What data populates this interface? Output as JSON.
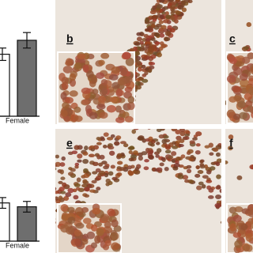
{
  "chart_data": [
    {
      "type": "bar",
      "categories": [
        "Female"
      ],
      "ylim": [
        0,
        150
      ],
      "series": [
        {
          "color": "#ffffff",
          "values": [
            80
          ],
          "errors": [
            8
          ]
        },
        {
          "color": "#6e6e6e",
          "values": [
            98
          ],
          "errors": [
            10
          ]
        }
      ]
    },
    {
      "type": "bar",
      "categories": [
        "Female"
      ],
      "ylim": [
        0,
        150
      ],
      "series": [
        {
          "color": "#ffffff",
          "values": [
            50
          ],
          "errors": [
            7
          ]
        },
        {
          "color": "#6e6e6e",
          "values": [
            45
          ],
          "errors": [
            7
          ]
        }
      ]
    }
  ],
  "panels": [
    {
      "label": "b"
    },
    {
      "label": "c"
    },
    {
      "label": "e"
    },
    {
      "label": "f"
    }
  ]
}
